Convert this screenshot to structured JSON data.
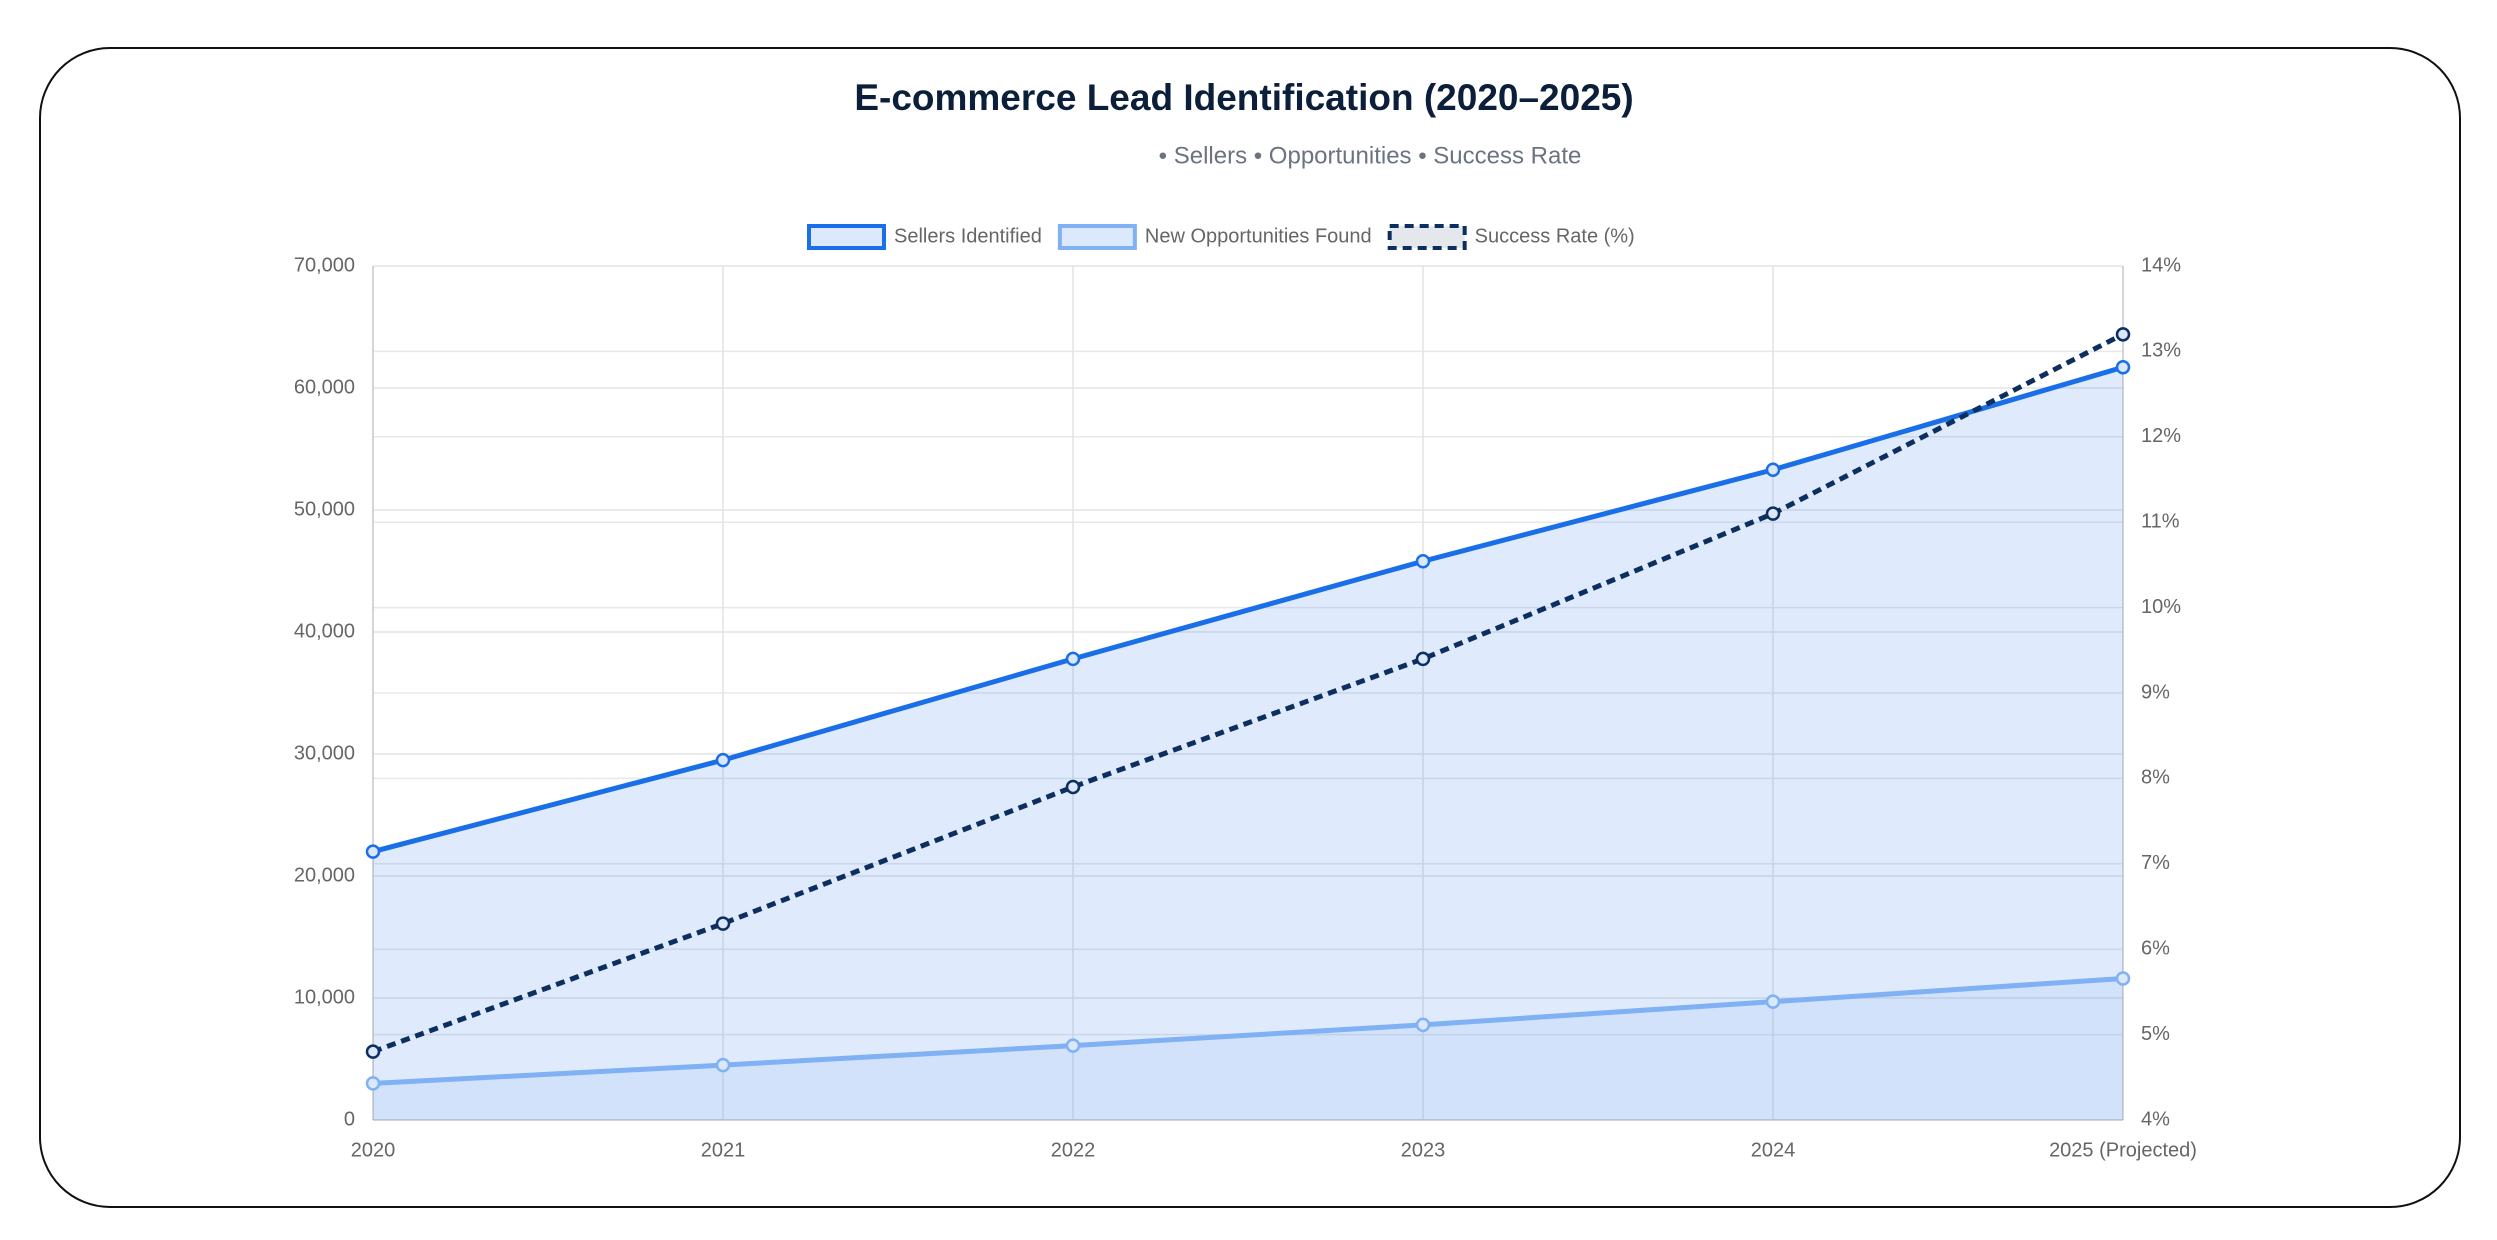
{
  "chart_data": {
    "type": "line",
    "title": "E-commerce Lead Identification (2020–2025)",
    "subtitle": "• Sellers • Opportunities • Success Rate",
    "categories": [
      "2020",
      "2021",
      "2022",
      "2023",
      "2024",
      "2025 (Projected)"
    ],
    "series": [
      {
        "name": "Sellers Identified",
        "color": "#1a6fe8",
        "fill": true,
        "dashed": false,
        "values": [
          22000,
          29500,
          37800,
          45800,
          53300,
          61700
        ]
      },
      {
        "name": "New Opportunities Found",
        "color": "#7fb1f4",
        "fill": true,
        "dashed": false,
        "values": [
          3000,
          4500,
          6100,
          7800,
          9700,
          11600
        ]
      },
      {
        "name": "Success Rate (%)",
        "color": "#0d2f5f",
        "fill": false,
        "dashed": true,
        "axis": "y2",
        "values": [
          4.8,
          6.3,
          7.9,
          9.4,
          11.1,
          13.2
        ]
      }
    ],
    "ylim": [
      0,
      70000
    ],
    "yticks": [
      0,
      {
        "value": 10000,
        "label": "10,000"
      },
      {
        "value": 20000,
        "label": "20,000"
      },
      {
        "value": 30000,
        "label": "30,000"
      },
      {
        "value": 40000,
        "label": "40,000"
      },
      {
        "value": 50000,
        "label": "50,000"
      },
      {
        "value": 60000,
        "label": "60,000"
      },
      {
        "value": 70000,
        "label": "70,000"
      }
    ],
    "y2lim": [
      4,
      14
    ],
    "y2ticks": [
      {
        "value": 4,
        "label": "4%"
      },
      {
        "value": 5,
        "label": "5%"
      },
      {
        "value": 6,
        "label": "6%"
      },
      {
        "value": 7,
        "label": "7%"
      },
      {
        "value": 8,
        "label": "8%"
      },
      {
        "value": 9,
        "label": "9%"
      },
      {
        "value": 10,
        "label": "10%"
      },
      {
        "value": 11,
        "label": "11%"
      },
      {
        "value": 12,
        "label": "12%"
      },
      {
        "value": 13,
        "label": "13%"
      },
      {
        "value": 14,
        "label": "14%"
      }
    ],
    "grid": true,
    "legend": "top"
  }
}
